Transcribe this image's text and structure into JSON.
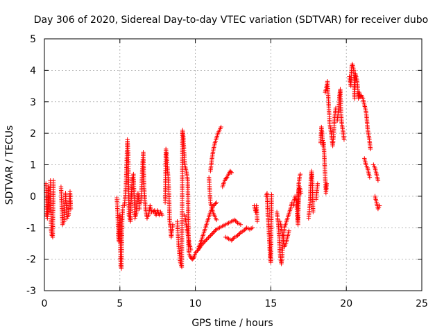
{
  "chart_data": {
    "type": "scatter",
    "title": "Day 306 of 2020, Sidereal Day-to-day VTEC variation (SDTVAR) for receiver dubo",
    "xlabel": "GPS time / hours",
    "ylabel": "SDTVAR / TECUs",
    "xlim": [
      0,
      25
    ],
    "ylim": [
      -3,
      5
    ],
    "xticks": [
      "0",
      "5",
      "10",
      "15",
      "20",
      "25"
    ],
    "yticks": [
      "-3",
      "-2",
      "-1",
      "0",
      "1",
      "2",
      "3",
      "4",
      "5"
    ],
    "xtick_values": [
      0,
      5,
      10,
      15,
      20,
      25
    ],
    "ytick_values": [
      -3,
      -2,
      -1,
      0,
      1,
      2,
      3,
      4,
      5
    ],
    "grid": true,
    "marker": "+",
    "marker_color": "#ff0000",
    "segments": [
      [
        [
          0.1,
          0.4
        ],
        [
          0.15,
          -0.6
        ],
        [
          0.2,
          -0.7
        ],
        [
          0.25,
          0.3
        ],
        [
          0.3,
          -0.5
        ]
      ],
      [
        [
          0.4,
          0.5
        ],
        [
          0.45,
          -1.1
        ],
        [
          0.5,
          -1.25
        ],
        [
          0.55,
          -1.3
        ],
        [
          0.6,
          0.5
        ]
      ],
      [
        [
          1.1,
          0.3
        ],
        [
          1.2,
          -0.9
        ],
        [
          1.3,
          -0.8
        ],
        [
          1.4,
          0.1
        ],
        [
          1.5,
          -0.7
        ],
        [
          1.6,
          -0.6
        ],
        [
          1.7,
          0.15
        ],
        [
          1.75,
          -0.4
        ]
      ],
      [
        [
          4.8,
          -0.05
        ],
        [
          4.85,
          -0.5
        ],
        [
          4.9,
          -1.3
        ],
        [
          4.95,
          -1.45
        ],
        [
          5.0,
          -0.6
        ],
        [
          5.05,
          -2.2
        ],
        [
          5.1,
          -2.3
        ],
        [
          5.15,
          -0.8
        ],
        [
          5.2,
          -0.3
        ]
      ],
      [
        [
          5.3,
          -0.3
        ],
        [
          5.4,
          0.3
        ],
        [
          5.5,
          1.8
        ],
        [
          5.55,
          1.4
        ],
        [
          5.6,
          -0.6
        ],
        [
          5.7,
          -0.8
        ],
        [
          5.8,
          0.5
        ],
        [
          5.9,
          0.7
        ],
        [
          6.0,
          -0.7
        ],
        [
          6.1,
          -0.5
        ],
        [
          6.2,
          0.1
        ],
        [
          6.3,
          -0.4
        ]
      ],
      [
        [
          6.4,
          -0.2
        ],
        [
          6.5,
          1.0
        ],
        [
          6.55,
          1.4
        ],
        [
          6.6,
          0.3
        ],
        [
          6.7,
          -0.4
        ],
        [
          6.8,
          -0.7
        ],
        [
          6.9,
          -0.6
        ],
        [
          7.0,
          -0.3
        ],
        [
          7.1,
          -0.5
        ],
        [
          7.2,
          -0.5
        ],
        [
          7.3,
          -0.45
        ],
        [
          7.4,
          -0.6
        ],
        [
          7.5,
          -0.45
        ],
        [
          7.6,
          -0.6
        ],
        [
          7.7,
          -0.5
        ],
        [
          7.8,
          -0.6
        ]
      ],
      [
        [
          8.0,
          -0.2
        ],
        [
          8.05,
          1.5
        ],
        [
          8.1,
          1.3
        ],
        [
          8.15,
          0.9
        ],
        [
          8.2,
          0.6
        ],
        [
          8.25,
          0.1
        ],
        [
          8.3,
          -0.8
        ],
        [
          8.35,
          -1.0
        ],
        [
          8.4,
          -1.3
        ],
        [
          8.5,
          -0.9
        ]
      ],
      [
        [
          8.8,
          -0.8
        ],
        [
          8.9,
          -1.6
        ],
        [
          9.0,
          -2.1
        ],
        [
          9.1,
          -2.25
        ],
        [
          9.15,
          2.1
        ],
        [
          9.2,
          1.9
        ],
        [
          9.3,
          1.0
        ],
        [
          9.4,
          0.8
        ],
        [
          9.5,
          0.5
        ],
        [
          9.55,
          -1.7
        ],
        [
          9.6,
          -1.85
        ],
        [
          9.7,
          -1.95
        ],
        [
          9.8,
          -2.0
        ],
        [
          9.9,
          -1.95
        ],
        [
          10.0,
          -1.8
        ]
      ],
      [
        [
          9.3,
          -0.6
        ],
        [
          9.4,
          -0.9
        ],
        [
          9.5,
          -1.2
        ],
        [
          9.6,
          -1.5
        ],
        [
          9.7,
          -1.7
        ]
      ],
      [
        [
          10.0,
          -1.8
        ],
        [
          10.2,
          -1.7
        ],
        [
          10.4,
          -1.55
        ],
        [
          10.6,
          -1.45
        ],
        [
          10.8,
          -1.35
        ],
        [
          11.0,
          -1.25
        ],
        [
          11.2,
          -1.15
        ],
        [
          11.4,
          -1.05
        ],
        [
          11.6,
          -1.0
        ],
        [
          11.8,
          -0.95
        ],
        [
          12.0,
          -0.9
        ],
        [
          12.2,
          -0.85
        ],
        [
          12.4,
          -0.8
        ],
        [
          12.6,
          -0.75
        ],
        [
          12.8,
          -0.85
        ],
        [
          13.0,
          -0.9
        ]
      ],
      [
        [
          10.2,
          -1.65
        ],
        [
          10.4,
          -1.4
        ],
        [
          10.6,
          -1.1
        ],
        [
          10.8,
          -0.8
        ],
        [
          11.0,
          -0.5
        ],
        [
          11.2,
          -0.3
        ],
        [
          11.4,
          -0.2
        ]
      ],
      [
        [
          11.0,
          0.8
        ],
        [
          11.1,
          1.2
        ],
        [
          11.2,
          1.5
        ],
        [
          11.3,
          1.7
        ],
        [
          11.4,
          1.85
        ],
        [
          11.5,
          2.0
        ],
        [
          11.6,
          2.1
        ],
        [
          11.7,
          2.2
        ]
      ],
      [
        [
          10.9,
          0.6
        ],
        [
          11.0,
          -0.2
        ],
        [
          11.1,
          -0.4
        ],
        [
          11.2,
          -0.55
        ],
        [
          11.3,
          -0.65
        ],
        [
          11.4,
          -0.75
        ]
      ],
      [
        [
          11.8,
          0.3
        ],
        [
          11.9,
          0.45
        ],
        [
          12.0,
          0.55
        ],
        [
          12.1,
          0.6
        ],
        [
          12.2,
          0.7
        ],
        [
          12.3,
          0.8
        ],
        [
          12.4,
          0.75
        ]
      ],
      [
        [
          12.0,
          -1.3
        ],
        [
          12.2,
          -1.35
        ],
        [
          12.4,
          -1.4
        ],
        [
          12.6,
          -1.3
        ],
        [
          12.8,
          -1.25
        ],
        [
          13.0,
          -1.15
        ],
        [
          13.2,
          -1.1
        ],
        [
          13.4,
          -1.0
        ],
        [
          13.6,
          -1.05
        ],
        [
          13.8,
          -1.0
        ]
      ],
      [
        [
          13.9,
          -0.3
        ],
        [
          14.0,
          -0.5
        ],
        [
          14.05,
          -0.3
        ],
        [
          14.1,
          -0.8
        ]
      ],
      [
        [
          14.7,
          0.0
        ],
        [
          14.75,
          0.1
        ],
        [
          14.8,
          -0.6
        ],
        [
          14.85,
          -0.9
        ],
        [
          14.9,
          -1.4
        ],
        [
          14.95,
          -1.9
        ],
        [
          15.0,
          -2.1
        ],
        [
          15.05,
          0.05
        ]
      ],
      [
        [
          15.4,
          -0.5
        ],
        [
          15.5,
          -0.9
        ],
        [
          15.55,
          -1.3
        ],
        [
          15.6,
          -1.8
        ],
        [
          15.65,
          -2.0
        ],
        [
          15.7,
          -2.15
        ],
        [
          15.75,
          -1.9
        ],
        [
          15.8,
          -1.5
        ],
        [
          15.85,
          -1.2
        ],
        [
          15.9,
          -1.0
        ],
        [
          16.0,
          -0.85
        ],
        [
          16.1,
          -0.7
        ],
        [
          16.2,
          -0.55
        ],
        [
          16.3,
          -0.4
        ],
        [
          16.4,
          -0.2
        ]
      ],
      [
        [
          15.6,
          -0.8
        ],
        [
          15.7,
          -1.0
        ],
        [
          15.8,
          -1.3
        ],
        [
          15.9,
          -1.6
        ],
        [
          16.0,
          -1.5
        ],
        [
          16.1,
          -1.3
        ],
        [
          16.2,
          -1.1
        ]
      ],
      [
        [
          16.5,
          -0.3
        ],
        [
          16.6,
          0.0
        ],
        [
          16.7,
          -0.2
        ],
        [
          16.75,
          -0.6
        ],
        [
          16.8,
          -0.9
        ],
        [
          16.85,
          0.4
        ],
        [
          16.9,
          0.6
        ],
        [
          16.95,
          0.7
        ]
      ],
      [
        [
          16.8,
          -0.4
        ],
        [
          16.85,
          0.2
        ],
        [
          16.9,
          0.3
        ],
        [
          17.0,
          0.1
        ]
      ],
      [
        [
          17.5,
          -0.7
        ],
        [
          17.6,
          -0.2
        ],
        [
          17.65,
          0.5
        ],
        [
          17.7,
          0.8
        ],
        [
          17.75,
          0.4
        ],
        [
          17.8,
          -0.5
        ]
      ],
      [
        [
          18.0,
          -0.1
        ],
        [
          18.1,
          0.4
        ]
      ],
      [
        [
          18.3,
          1.7
        ],
        [
          18.35,
          2.2
        ],
        [
          18.4,
          2.0
        ],
        [
          18.45,
          1.6
        ],
        [
          18.5,
          1.7
        ],
        [
          18.55,
          1.2
        ],
        [
          18.6,
          0.6
        ],
        [
          18.65,
          0.1
        ],
        [
          18.7,
          0.4
        ]
      ],
      [
        [
          18.6,
          3.3
        ],
        [
          18.7,
          3.5
        ],
        [
          18.75,
          3.65
        ],
        [
          18.8,
          3.2
        ],
        [
          18.85,
          2.7
        ],
        [
          18.9,
          2.3
        ],
        [
          19.0,
          2.0
        ],
        [
          19.1,
          1.6
        ],
        [
          19.15,
          1.9
        ],
        [
          19.2,
          2.3
        ],
        [
          19.25,
          2.6
        ],
        [
          19.3,
          2.8
        ]
      ],
      [
        [
          19.4,
          2.4
        ],
        [
          19.5,
          2.8
        ],
        [
          19.55,
          3.2
        ],
        [
          19.6,
          3.4
        ],
        [
          19.65,
          2.6
        ],
        [
          19.7,
          2.3
        ],
        [
          19.8,
          2.0
        ],
        [
          19.85,
          1.8
        ]
      ],
      [
        [
          20.2,
          3.8
        ],
        [
          20.3,
          3.5
        ],
        [
          20.35,
          4.1
        ],
        [
          20.4,
          4.2
        ],
        [
          20.5,
          4.0
        ],
        [
          20.55,
          3.1
        ],
        [
          20.6,
          3.9
        ],
        [
          20.7,
          3.7
        ],
        [
          20.75,
          3.5
        ],
        [
          20.8,
          3.1
        ],
        [
          20.85,
          3.3
        ],
        [
          20.9,
          3.15
        ],
        [
          21.0,
          3.2
        ],
        [
          21.1,
          3.1
        ],
        [
          21.15,
          3.0
        ],
        [
          21.2,
          2.9
        ],
        [
          21.3,
          2.7
        ],
        [
          21.35,
          2.5
        ],
        [
          21.4,
          2.2
        ],
        [
          21.45,
          2.0
        ],
        [
          21.5,
          1.9
        ],
        [
          21.55,
          1.7
        ],
        [
          21.6,
          1.5
        ]
      ],
      [
        [
          21.2,
          1.2
        ],
        [
          21.3,
          1.0
        ],
        [
          21.4,
          0.9
        ],
        [
          21.5,
          0.7
        ],
        [
          21.55,
          0.6
        ]
      ],
      [
        [
          21.8,
          1.0
        ],
        [
          21.9,
          0.9
        ],
        [
          22.0,
          0.7
        ],
        [
          22.05,
          0.6
        ],
        [
          22.1,
          0.5
        ]
      ],
      [
        [
          21.9,
          0.0
        ],
        [
          22.0,
          -0.2
        ],
        [
          22.05,
          -0.3
        ],
        [
          22.1,
          -0.4
        ],
        [
          22.15,
          -0.35
        ],
        [
          22.2,
          -0.3
        ]
      ]
    ]
  }
}
